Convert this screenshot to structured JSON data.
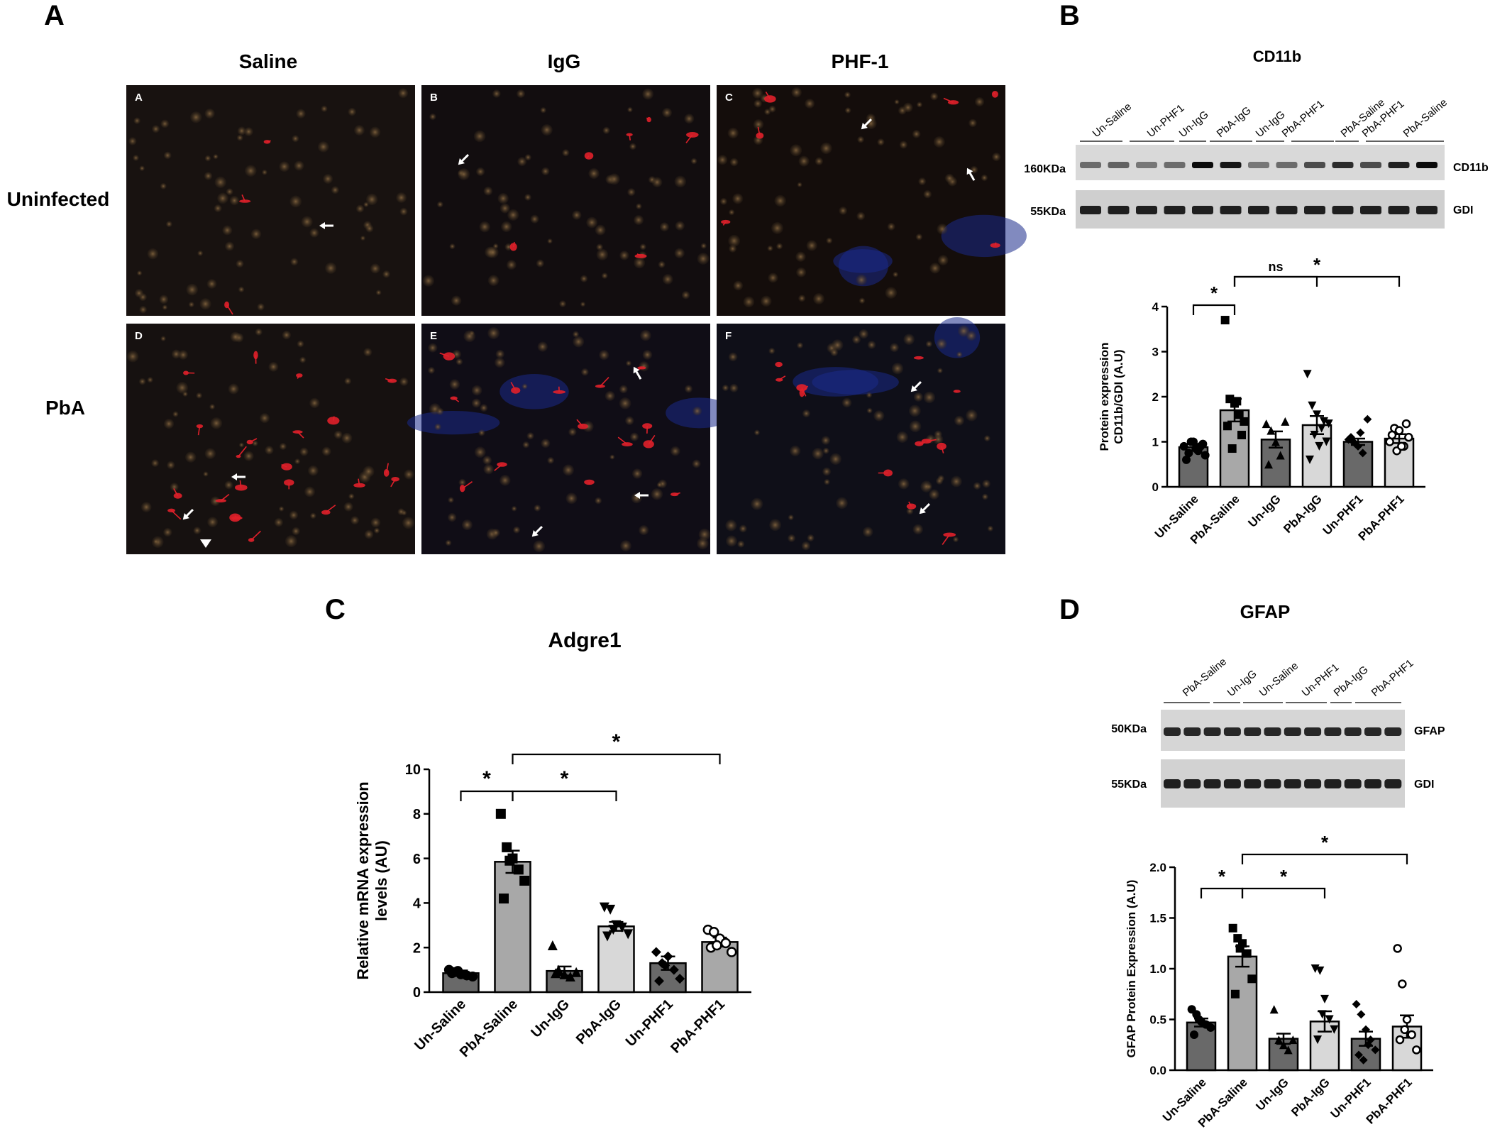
{
  "panel_a": {
    "letter": "A",
    "col_headers": [
      "Saline",
      "IgG",
      "PHF-1"
    ],
    "row_headers": [
      "Uninfected",
      "PbA"
    ],
    "sub_letters": [
      "A",
      "B",
      "C",
      "D",
      "E",
      "F"
    ]
  },
  "panel_b": {
    "letter": "B",
    "title": "CD11b",
    "blot_lanes": [
      "Un-Saline",
      "Un-PHF1",
      "Un-IgG",
      "PbA-IgG",
      "Un-IgG",
      "PbA-PHF1",
      "PbA-Saline",
      "PbA-PHF1",
      "PbA-Saline"
    ],
    "bands": [
      {
        "mw": "160KDa",
        "label": "CD11b"
      },
      {
        "mw": "55KDa",
        "label": "GDI"
      }
    ]
  },
  "panel_c": {
    "letter": "C"
  },
  "panel_d": {
    "letter": "D",
    "title": "GFAP",
    "blot_lanes": [
      "PbA-Saline",
      "Un-IgG",
      "Un-Saline",
      "Un-PHF1",
      "PbA-IgG",
      "PbA-PHF1"
    ],
    "bands": [
      {
        "mw": "50KDa",
        "label": "GFAP"
      },
      {
        "mw": "55KDa",
        "label": "GDI"
      }
    ]
  },
  "chart_data": [
    {
      "id": "B",
      "type": "bar",
      "title": "",
      "ylabel": [
        "Protein expression",
        "CD11b/GDI (A.U)"
      ],
      "categories": [
        "Un-Saline",
        "PbA-Saline",
        "Un-IgG",
        "PbA-IgG",
        "Un-PHF1",
        "PbA-PHF1"
      ],
      "values": [
        0.88,
        1.7,
        1.05,
        1.37,
        1.0,
        1.07
      ],
      "errors": [
        0.07,
        0.25,
        0.18,
        0.2,
        0.07,
        0.1
      ],
      "points": [
        [
          0.9,
          0.75,
          1.0,
          0.8,
          0.95,
          0.6,
          1.0,
          0.85,
          0.9,
          0.7
        ],
        [
          3.7,
          1.95,
          1.85,
          1.6,
          1.45,
          1.35,
          0.85,
          1.9,
          1.15
        ],
        [
          1.4,
          1.25,
          1.0,
          0.7,
          1.45,
          0.5
        ],
        [
          2.5,
          1.8,
          1.6,
          1.3,
          1.0,
          0.6,
          1.15,
          0.9,
          1.45,
          1.4
        ],
        [
          1.05,
          1.0,
          0.9,
          0.75,
          1.5,
          1.1,
          0.95,
          1.2
        ],
        [
          1.0,
          1.3,
          1.25,
          0.9,
          1.1,
          1.15,
          0.8,
          0.9,
          1.4
        ]
      ],
      "ylim": [
        0,
        4
      ],
      "yticks": [
        0,
        1,
        2,
        3,
        4
      ],
      "colors": [
        "#696969",
        "#a8a8a8",
        "#696969",
        "#d8d8d8",
        "#696969",
        "#d8d8d8"
      ],
      "markers": [
        "circle",
        "square",
        "triangle",
        "triangle-down",
        "diamond",
        "circle-open"
      ],
      "comparisons": [
        {
          "from": 0,
          "to": 1,
          "label": "*"
        },
        {
          "from": 1,
          "to": 3,
          "label": "ns"
        },
        {
          "from": 1,
          "to": 5,
          "label": "*"
        }
      ]
    },
    {
      "id": "C",
      "type": "bar",
      "title": "Adgre1",
      "ylabel": [
        "Relative mRNA expression",
        "levels (AU)"
      ],
      "categories": [
        "Un-Saline",
        "PbA-Saline",
        "Un-IgG",
        "PbA-IgG",
        "Un-PHF1",
        "PbA-PHF1"
      ],
      "values": [
        0.85,
        5.85,
        0.95,
        2.95,
        1.3,
        2.25
      ],
      "errors": [
        0.12,
        0.5,
        0.2,
        0.2,
        0.3,
        0.2
      ],
      "points": [
        [
          1.0,
          0.9,
          0.8,
          0.75,
          0.7,
          0.85,
          0.95
        ],
        [
          8.0,
          6.5,
          6.0,
          5.5,
          5.0,
          4.2,
          5.9
        ],
        [
          2.1,
          1.0,
          0.8,
          0.7,
          0.9,
          0.85
        ],
        [
          3.8,
          3.7,
          3.0,
          2.9,
          2.6,
          2.5,
          2.8
        ],
        [
          1.8,
          1.3,
          1.6,
          1.0,
          0.6,
          0.5,
          1.2
        ],
        [
          2.8,
          2.7,
          2.4,
          2.2,
          1.8,
          2.0,
          2.1
        ]
      ],
      "ylim": [
        0,
        10
      ],
      "yticks": [
        0,
        2,
        4,
        6,
        8,
        10
      ],
      "colors": [
        "#696969",
        "#a8a8a8",
        "#696969",
        "#d8d8d8",
        "#696969",
        "#a8a8a8"
      ],
      "markers": [
        "circle",
        "square",
        "triangle",
        "triangle-down",
        "diamond",
        "circle-open"
      ],
      "comparisons": [
        {
          "from": 0,
          "to": 1,
          "label": "*"
        },
        {
          "from": 1,
          "to": 3,
          "label": "*"
        },
        {
          "from": 1,
          "to": 5,
          "label": "*"
        }
      ]
    },
    {
      "id": "D",
      "type": "bar",
      "title": "",
      "ylabel": [
        "GFAP Protein Expression (A.U)"
      ],
      "categories": [
        "Un-Saline",
        "PbA-Saline",
        "Un-IgG",
        "PbA-IgG",
        "Un-PHF1",
        "PbA-PHF1"
      ],
      "values": [
        0.47,
        1.12,
        0.31,
        0.48,
        0.31,
        0.43
      ],
      "errors": [
        0.04,
        0.1,
        0.05,
        0.1,
        0.07,
        0.11
      ],
      "points": [
        [
          0.6,
          0.55,
          0.48,
          0.45,
          0.42,
          0.35,
          0.5
        ],
        [
          1.4,
          1.3,
          1.25,
          1.15,
          0.9,
          0.75,
          1.2
        ],
        [
          0.6,
          0.3,
          0.25,
          0.2,
          0.3
        ],
        [
          1.0,
          0.98,
          0.7,
          0.5,
          0.4,
          0.3,
          0.55
        ],
        [
          0.65,
          0.55,
          0.4,
          0.3,
          0.2,
          0.15,
          0.1,
          0.25
        ],
        [
          1.2,
          0.85,
          0.5,
          0.35,
          0.2,
          0.3,
          0.4
        ]
      ],
      "ylim": [
        0,
        2
      ],
      "yticks": [
        0.0,
        0.5,
        1.0,
        1.5,
        2.0
      ],
      "colors": [
        "#696969",
        "#a8a8a8",
        "#696969",
        "#d8d8d8",
        "#696969",
        "#d8d8d8"
      ],
      "markers": [
        "circle",
        "square",
        "triangle",
        "triangle-down",
        "diamond",
        "circle-open"
      ],
      "comparisons": [
        {
          "from": 0,
          "to": 1,
          "label": "*"
        },
        {
          "from": 1,
          "to": 3,
          "label": "*"
        },
        {
          "from": 1,
          "to": 5,
          "label": "*"
        }
      ]
    }
  ]
}
